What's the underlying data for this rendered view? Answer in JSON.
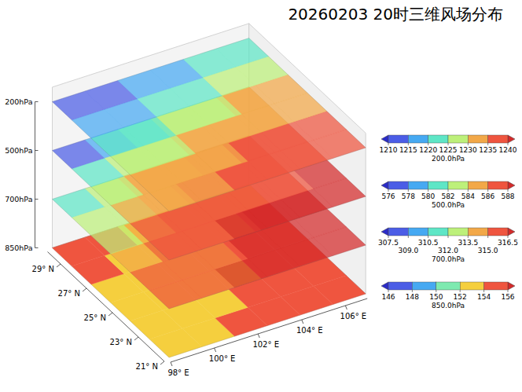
{
  "chart_data": {
    "type": "surface3d",
    "title": "20260203 20时三维风场分布",
    "xlim": [
      98,
      107
    ],
    "ylim": [
      21,
      30
    ],
    "xticks": [
      {
        "value": 98,
        "label": "98° E"
      },
      {
        "value": 100,
        "label": "100° E"
      },
      {
        "value": 102,
        "label": "102° E"
      },
      {
        "value": 104,
        "label": "104° E"
      },
      {
        "value": 106,
        "label": "106° E"
      }
    ],
    "yticks": [
      {
        "value": 21,
        "label": "21° N"
      },
      {
        "value": 23,
        "label": "23° N"
      },
      {
        "value": 25,
        "label": "25° N"
      },
      {
        "value": 27,
        "label": "27° N"
      },
      {
        "value": 29,
        "label": "29° N"
      }
    ],
    "zticks": [
      {
        "value": 850,
        "label": "850hPa"
      },
      {
        "value": 700,
        "label": "700hPa"
      },
      {
        "value": 500,
        "label": "500hPa"
      },
      {
        "value": 200,
        "label": "200hPa"
      }
    ],
    "layers": [
      {
        "name": "200.0hPa",
        "level": 200,
        "values": [
          [
            1233,
            1234,
            1236,
            1237,
            1238,
            1238
          ],
          [
            1230,
            1232,
            1234,
            1235,
            1236,
            1237
          ],
          [
            1226,
            1228,
            1230,
            1232,
            1233,
            1234
          ],
          [
            1222,
            1224,
            1226,
            1228,
            1230,
            1231
          ],
          [
            1216,
            1218,
            1221,
            1224,
            1226,
            1228
          ],
          [
            1211,
            1213,
            1216,
            1219,
            1222,
            1224
          ]
        ],
        "colorbar": {
          "ticks": [
            1210,
            1215,
            1220,
            1225,
            1230,
            1235,
            1240
          ],
          "colors": [
            "#2b2bc8",
            "#4b5de6",
            "#46a9f2",
            "#5ee6c6",
            "#bdf07a",
            "#f2a848",
            "#ef553f",
            "#d42a2a"
          ]
        }
      },
      {
        "name": "500.0hPa",
        "level": 500,
        "values": [
          [
            587,
            587.5,
            588,
            588,
            588,
            588
          ],
          [
            586.5,
            587,
            587,
            587.5,
            587.5,
            588
          ],
          [
            585,
            585.5,
            586,
            586.5,
            587,
            587
          ],
          [
            583,
            584,
            585,
            585.5,
            586,
            586.5
          ],
          [
            581,
            582,
            583.5,
            584.5,
            585,
            585.5
          ],
          [
            577,
            579,
            581,
            582.5,
            583.5,
            584.5
          ]
        ],
        "colorbar": {
          "ticks": [
            576,
            578,
            580,
            582,
            584,
            586,
            588
          ],
          "colors": [
            "#2b2bc8",
            "#4b5de6",
            "#46a9f2",
            "#5ee6c6",
            "#bdf07a",
            "#f2a848",
            "#ef553f",
            "#d42a2a"
          ]
        }
      },
      {
        "name": "700.0hPa",
        "level": 700,
        "values": [
          [
            316,
            316,
            316.5,
            317,
            317,
            317
          ],
          [
            315.5,
            316,
            316,
            316.5,
            317,
            317
          ],
          [
            314,
            315,
            315.5,
            316,
            316.5,
            316.5
          ],
          [
            313,
            314,
            315,
            315.5,
            316,
            316
          ],
          [
            312,
            313,
            314,
            315,
            315.5,
            316
          ],
          [
            311,
            312,
            313.5,
            314.5,
            315,
            315.5
          ]
        ],
        "colorbar": {
          "ticks": [
            307.5,
            {
              "value": 309,
              "label": "309.0"
            },
            310.5,
            {
              "value": 312,
              "label": "312.0"
            },
            313.5,
            {
              "value": 315,
              "label": "315.0"
            },
            316.5
          ],
          "colors": [
            "#2b2bc8",
            "#4b5de6",
            "#46a9f2",
            "#5ee6c6",
            "#bdf07a",
            "#f2a848",
            "#ef553f",
            "#d42a2a"
          ]
        }
      },
      {
        "name": "850.0hPa",
        "level": 850,
        "values": [
          [
            153,
            153,
            154,
            155,
            155,
            155
          ],
          [
            153,
            153,
            153,
            154,
            155,
            155
          ],
          [
            153,
            153,
            153,
            153,
            154,
            155
          ],
          [
            153,
            152.5,
            153,
            153,
            154,
            155
          ],
          [
            154,
            153,
            153,
            153,
            153,
            154
          ],
          [
            155,
            154,
            153,
            153,
            153,
            153
          ]
        ],
        "colorbar": {
          "ticks": [
            146,
            148,
            150,
            152,
            154,
            156
          ],
          "colors": [
            "#2b2bc8",
            "#4b5de6",
            "#46a9f2",
            "#7eeab0",
            "#f5cf3e",
            "#ef553f",
            "#d42a2a"
          ]
        }
      }
    ]
  }
}
